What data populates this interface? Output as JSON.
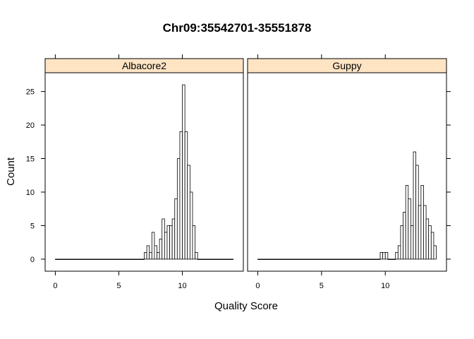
{
  "chart_data": {
    "type": "bar",
    "title": "Chr09:35542701-35551878",
    "xlabel": "Quality Score",
    "ylabel": "Count",
    "xlim": [
      -0.8,
      14.8
    ],
    "ylim": [
      -1.8,
      27.8
    ],
    "x_ticks": [
      0,
      5,
      10
    ],
    "y_ticks": [
      0,
      5,
      10,
      15,
      20,
      25
    ],
    "bin_width": 0.2,
    "bin_range": [
      0,
      14
    ],
    "strip_color": "#ffe4c4",
    "panels": [
      {
        "name": "Albacore2",
        "bins": [
          {
            "x": 7.0,
            "count": 1
          },
          {
            "x": 7.2,
            "count": 2
          },
          {
            "x": 7.4,
            "count": 1
          },
          {
            "x": 7.6,
            "count": 4
          },
          {
            "x": 7.8,
            "count": 2
          },
          {
            "x": 8.0,
            "count": 1
          },
          {
            "x": 8.2,
            "count": 3
          },
          {
            "x": 8.4,
            "count": 6
          },
          {
            "x": 8.6,
            "count": 4
          },
          {
            "x": 8.8,
            "count": 5
          },
          {
            "x": 9.0,
            "count": 5
          },
          {
            "x": 9.2,
            "count": 6
          },
          {
            "x": 9.4,
            "count": 9
          },
          {
            "x": 9.6,
            "count": 15
          },
          {
            "x": 9.8,
            "count": 19
          },
          {
            "x": 10.0,
            "count": 26
          },
          {
            "x": 10.2,
            "count": 19
          },
          {
            "x": 10.4,
            "count": 14
          },
          {
            "x": 10.6,
            "count": 10
          },
          {
            "x": 10.8,
            "count": 5
          },
          {
            "x": 11.0,
            "count": 1
          }
        ]
      },
      {
        "name": "Guppy",
        "bins": [
          {
            "x": 9.6,
            "count": 1
          },
          {
            "x": 9.8,
            "count": 1
          },
          {
            "x": 10.0,
            "count": 1
          },
          {
            "x": 10.8,
            "count": 1
          },
          {
            "x": 11.0,
            "count": 2
          },
          {
            "x": 11.2,
            "count": 5
          },
          {
            "x": 11.4,
            "count": 7
          },
          {
            "x": 11.6,
            "count": 11
          },
          {
            "x": 11.8,
            "count": 9
          },
          {
            "x": 12.0,
            "count": 5
          },
          {
            "x": 12.2,
            "count": 16
          },
          {
            "x": 12.4,
            "count": 14
          },
          {
            "x": 12.6,
            "count": 8
          },
          {
            "x": 12.8,
            "count": 11
          },
          {
            "x": 13.0,
            "count": 8
          },
          {
            "x": 13.2,
            "count": 6
          },
          {
            "x": 13.4,
            "count": 5
          },
          {
            "x": 13.6,
            "count": 4
          },
          {
            "x": 13.8,
            "count": 2
          }
        ]
      }
    ]
  }
}
